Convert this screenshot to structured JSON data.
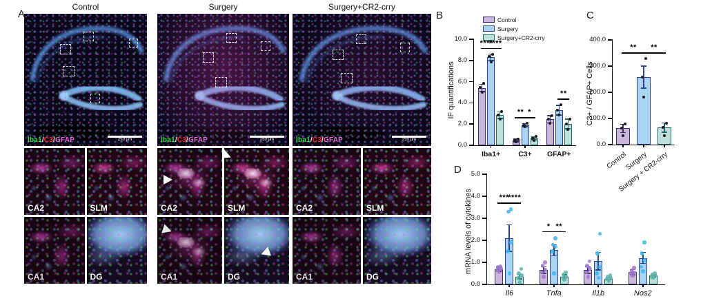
{
  "panels": {
    "A": {
      "label": "A",
      "columns": [
        {
          "title": "Control"
        },
        {
          "title": "Surgery"
        },
        {
          "title": "Surgery+CR2-crry"
        }
      ],
      "stain_parts": [
        {
          "text": "Iba1",
          "color": "#37e247"
        },
        {
          "text": "/",
          "color": "#e8e8e8"
        },
        {
          "text": "C3",
          "color": "#ff2d2d"
        },
        {
          "text": "/",
          "color": "#e8e8e8"
        },
        {
          "text": "GFAP",
          "color": "#ef6be4"
        }
      ],
      "scale_bar_text": "250 μm",
      "inset_labels": [
        "CA2",
        "SLM",
        "CA1",
        "DG"
      ]
    },
    "B": {
      "label": "B"
    },
    "C": {
      "label": "C"
    },
    "D": {
      "label": "D"
    }
  },
  "chart_data": [
    {
      "panel": "B",
      "type": "bar",
      "ylabel": "IF quantifications",
      "ylim": [
        0,
        10
      ],
      "yticks": [
        0,
        2,
        4,
        6,
        8,
        10
      ],
      "categories": [
        "Iba1+",
        "C3+",
        "GFAP+"
      ],
      "legend": true,
      "series": [
        {
          "name": "Control",
          "fill": "#cab7db",
          "stroke": "#3b2f72",
          "values": [
            5.4,
            0.45,
            2.45
          ],
          "errors": [
            0.35,
            0.12,
            0.35
          ],
          "dots": [
            [
              5.0,
              5.45,
              5.85
            ],
            [
              0.3,
              0.45,
              0.6
            ],
            [
              2.1,
              2.45,
              2.8
            ]
          ]
        },
        {
          "name": "Surgery",
          "fill": "#abd4f2",
          "stroke": "#27418c",
          "values": [
            8.3,
            1.9,
            3.3
          ],
          "errors": [
            0.3,
            0.15,
            0.45
          ],
          "dots": [
            [
              7.85,
              8.35,
              8.6
            ],
            [
              1.75,
              1.9,
              2.05
            ],
            [
              2.85,
              3.3,
              3.8
            ]
          ]
        },
        {
          "name": "Surgery+CR2-crry",
          "fill": "#bfdfda",
          "stroke": "#176b6d",
          "values": [
            2.85,
            0.65,
            2.0
          ],
          "errors": [
            0.3,
            0.12,
            0.45
          ],
          "dots": [
            [
              2.5,
              2.85,
              3.2
            ],
            [
              0.45,
              0.65,
              0.85
            ],
            [
              1.5,
              2.0,
              2.5
            ]
          ]
        }
      ],
      "sig": [
        {
          "a": [
            0,
            0
          ],
          "b": [
            0,
            1
          ],
          "label": "****"
        },
        {
          "a": [
            0,
            1
          ],
          "b": [
            0,
            2
          ],
          "label": "****"
        },
        {
          "a": [
            1,
            0
          ],
          "b": [
            1,
            1
          ],
          "label": "**"
        },
        {
          "a": [
            1,
            1
          ],
          "b": [
            1,
            2
          ],
          "label": "*"
        },
        {
          "a": [
            2,
            1
          ],
          "b": [
            2,
            2
          ],
          "label": "**"
        }
      ]
    },
    {
      "panel": "C",
      "type": "bar",
      "ylabel": "C3+ / GFAP+ Cells",
      "ylim": [
        0,
        400
      ],
      "yticks": [
        0,
        100,
        200,
        300,
        400
      ],
      "rotate_labels": true,
      "categories": [
        "Control",
        "Surgery",
        "Surgery + CR2-crry"
      ],
      "series": [
        {
          "name": "Control",
          "fill": "#cab7db",
          "stroke": "#3b2f72",
          "values": [
            62,
            null,
            null
          ],
          "errors": [
            16,
            null,
            null
          ],
          "dots": [
            [
              35,
              62,
              78
            ],
            null,
            null
          ]
        },
        {
          "name": "Surgery",
          "fill": "#abd4f2",
          "stroke": "#27418c",
          "values": [
            null,
            258,
            null
          ],
          "errors": [
            null,
            42,
            null
          ],
          "dots": [
            null,
            [
              182,
              258,
              328
            ],
            null
          ]
        },
        {
          "name": "Surgery+CR2-crry",
          "fill": "#bfdfda",
          "stroke": "#176b6d",
          "values": [
            null,
            null,
            65
          ],
          "errors": [
            null,
            null,
            18
          ],
          "dots": [
            null,
            null,
            [
              33,
              65,
              82
            ]
          ]
        }
      ],
      "sig": [
        {
          "a": [
            0,
            0
          ],
          "b": [
            1,
            1
          ],
          "label": "**"
        },
        {
          "a": [
            1,
            1
          ],
          "b": [
            2,
            2
          ],
          "label": "**"
        }
      ]
    },
    {
      "panel": "D",
      "type": "bar",
      "ylabel": "mRNA levels of cytokines",
      "ylim": [
        0,
        5
      ],
      "yticks": [
        0,
        1,
        2,
        3,
        4,
        5
      ],
      "italic_labels": true,
      "categories": [
        "Il6",
        "Tnfa",
        "Il1b",
        "Nos2"
      ],
      "dot_colors": [
        "#a179c9",
        "#3fb6f5",
        "#5fb3ab"
      ],
      "series": [
        {
          "name": "Control",
          "fill": "#cab7db",
          "stroke": "#3b2f72",
          "values": [
            0.7,
            0.65,
            0.65,
            0.55
          ],
          "errors": [
            0.1,
            0.15,
            0.15,
            0.12
          ],
          "dots": [
            [
              0.55,
              0.65,
              0.72,
              0.78,
              0.82
            ],
            [
              0.35,
              0.55,
              0.65,
              0.85,
              1.0
            ],
            [
              0.35,
              0.55,
              0.7,
              0.85,
              1.05
            ],
            [
              0.4,
              0.5,
              0.55,
              0.62,
              0.75
            ]
          ]
        },
        {
          "name": "Surgery",
          "fill": "#abd4f2",
          "stroke": "#27418c",
          "values": [
            2.1,
            1.55,
            1.05,
            1.2
          ],
          "errors": [
            0.6,
            0.25,
            0.4,
            0.25
          ],
          "dots": [
            [
              0.5,
              1.5,
              1.9,
              3.3,
              3.4
            ],
            [
              0.5,
              1.5,
              1.7,
              1.8,
              2.1
            ],
            [
              0.3,
              0.5,
              0.8,
              1.4,
              2.3
            ],
            [
              0.6,
              0.8,
              1.1,
              1.4,
              1.9
            ]
          ]
        },
        {
          "name": "Surgery+CR2-crry",
          "fill": "#bfdfda",
          "stroke": "#176b6d",
          "values": [
            0.35,
            0.35,
            0.25,
            0.4
          ],
          "errors": [
            0.1,
            0.08,
            0.05,
            0.05
          ],
          "dots": [
            [
              0.1,
              0.3,
              0.4,
              0.5,
              0.7
            ],
            [
              0.2,
              0.3,
              0.35,
              0.45,
              0.55
            ],
            [
              0.15,
              0.25,
              0.3,
              0.35,
              0.4
            ],
            [
              0.3,
              0.35,
              0.42,
              0.46,
              0.5
            ]
          ]
        }
      ],
      "sig": [
        {
          "a": [
            0,
            0
          ],
          "b": [
            0,
            1
          ],
          "label": "***"
        },
        {
          "a": [
            0,
            1
          ],
          "b": [
            0,
            2
          ],
          "label": "****"
        },
        {
          "a": [
            1,
            0
          ],
          "b": [
            1,
            1
          ],
          "label": "*"
        },
        {
          "a": [
            1,
            1
          ],
          "b": [
            1,
            2
          ],
          "label": "**"
        }
      ]
    }
  ]
}
